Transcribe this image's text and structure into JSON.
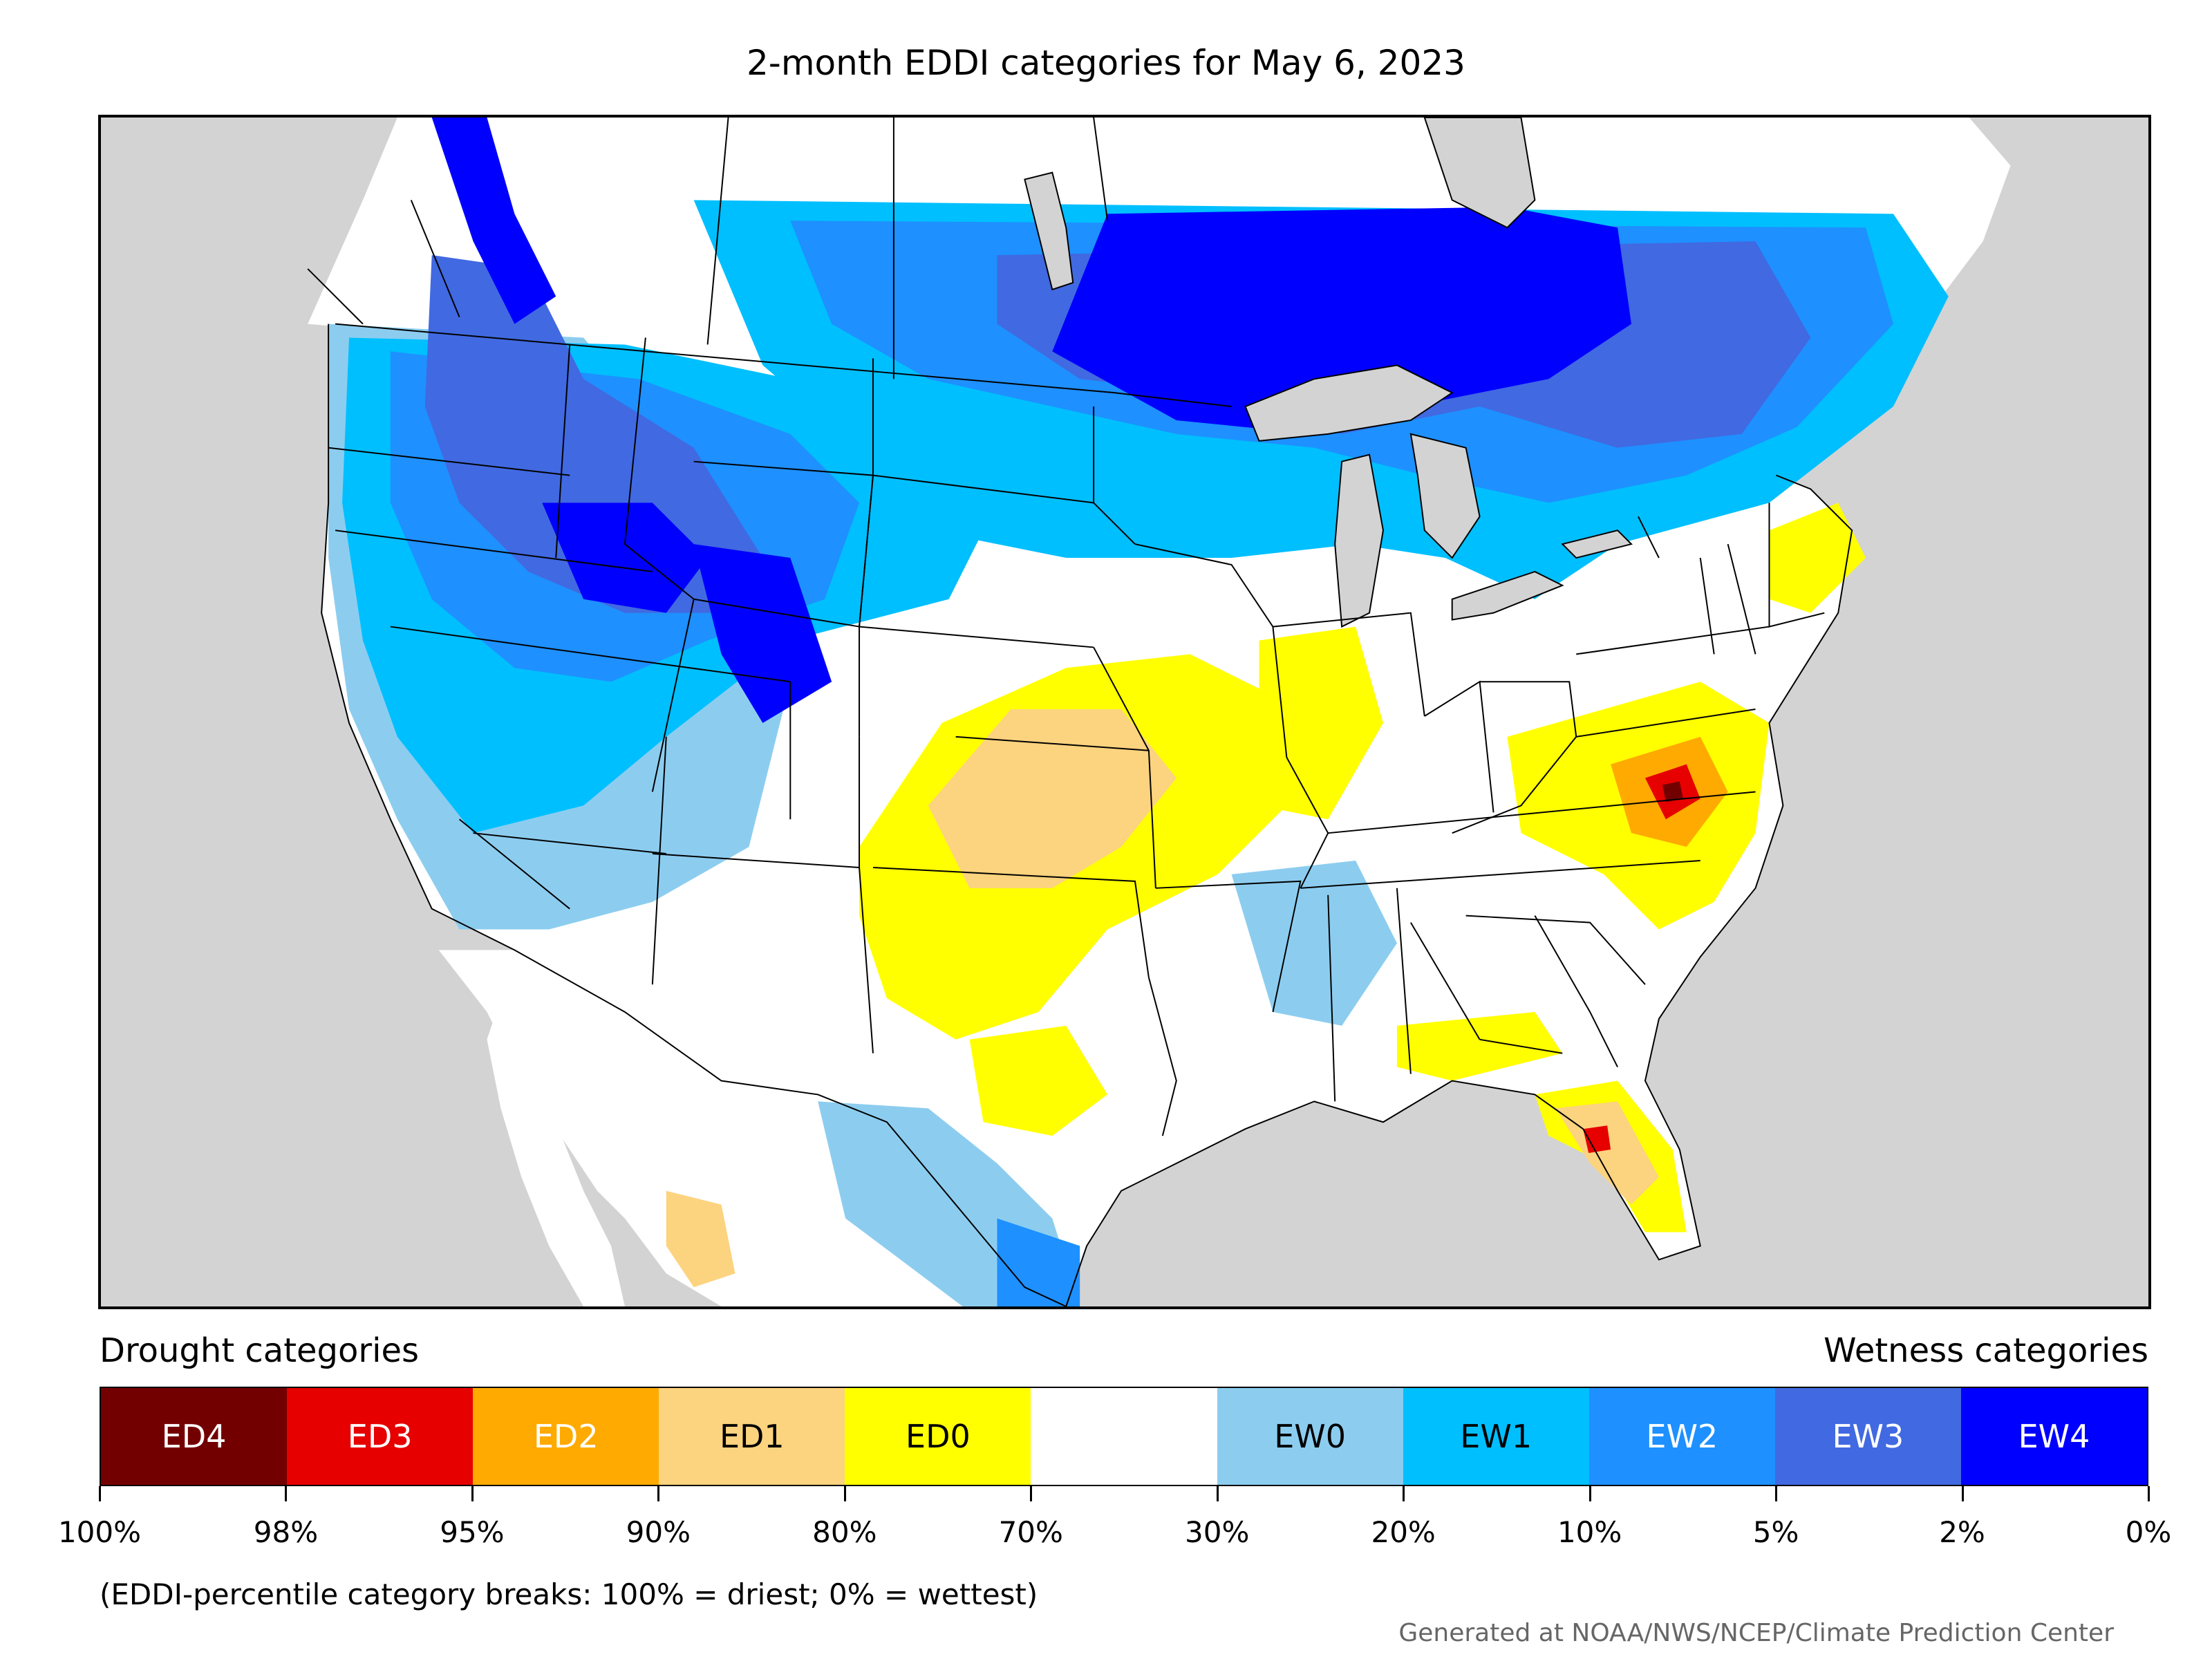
{
  "title": "2-month EDDI categories for May 6, 2023",
  "legend": {
    "drought_heading": "Drought categories",
    "wetness_heading": "Wetness categories",
    "categories": [
      {
        "label": "ED4",
        "color": "#730000",
        "text_color": "#ffffff"
      },
      {
        "label": "ED3",
        "color": "#e60000",
        "text_color": "#ffffff"
      },
      {
        "label": "ED2",
        "color": "#ffaa00",
        "text_color": "#ffffff"
      },
      {
        "label": "ED1",
        "color": "#fcd37f",
        "text_color": "#000000"
      },
      {
        "label": "ED0",
        "color": "#ffff00",
        "text_color": "#000000"
      },
      {
        "label": "",
        "color": "#ffffff",
        "text_color": "#000000"
      },
      {
        "label": "EW0",
        "color": "#8ccdef",
        "text_color": "#000000"
      },
      {
        "label": "EW1",
        "color": "#00bfff",
        "text_color": "#000000"
      },
      {
        "label": "EW2",
        "color": "#1e90ff",
        "text_color": "#ffffff"
      },
      {
        "label": "EW3",
        "color": "#4169e1",
        "text_color": "#ffffff"
      },
      {
        "label": "EW4",
        "color": "#0000ff",
        "text_color": "#ffffff"
      }
    ],
    "breaks": [
      "100%",
      "98%",
      "95%",
      "90%",
      "80%",
      "70%",
      "30%",
      "20%",
      "10%",
      "5%",
      "2%",
      "0%"
    ],
    "note": "(EDDI-percentile category breaks: 100% = driest; 0% = wettest)"
  },
  "credit": "Generated at NOAA/NWS/NCEP/Climate Prediction Center",
  "map": {
    "background_color": "#d3d3d3",
    "land_color": "#ffffff",
    "state_line_color": "#000000",
    "lake_color": "#d3d3d3"
  }
}
